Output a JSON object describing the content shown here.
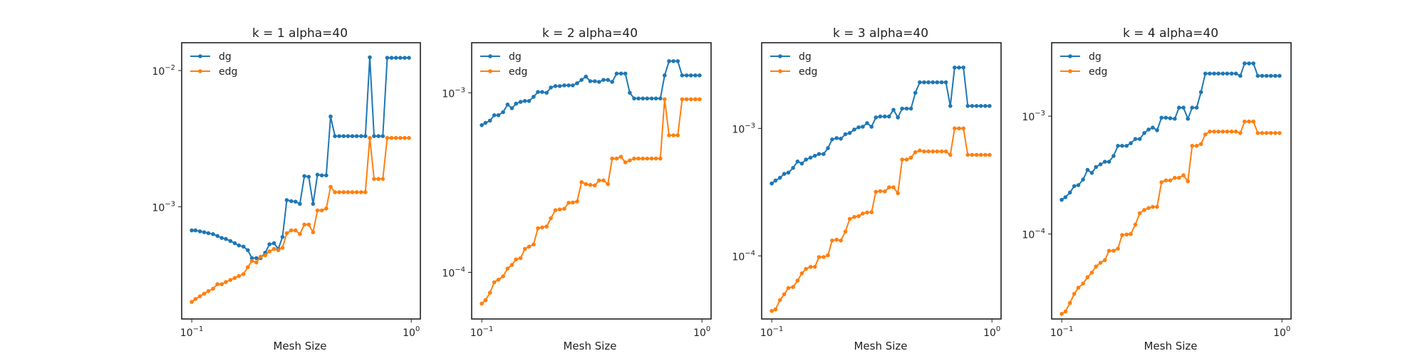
{
  "figure": {
    "panels": [
      {
        "title": "k = 1 alpha=40",
        "xlabel": "Mesh Size"
      },
      {
        "title": "k = 2 alpha=40",
        "xlabel": "Mesh Size"
      },
      {
        "title": "k = 3 alpha=40",
        "xlabel": "Mesh Size"
      },
      {
        "title": "k = 4 alpha=40",
        "xlabel": "Mesh Size"
      }
    ],
    "colors": {
      "dg": "#1f77b4",
      "edg": "#ff7f0e"
    }
  },
  "chart_data": [
    {
      "type": "line",
      "title": "k = 1 alpha=40",
      "xlabel": "Mesh Size",
      "ylabel": "",
      "xscale": "log",
      "yscale": "log",
      "xlim": [
        0.09,
        1.1
      ],
      "ylim": [
        0.00015,
        0.016
      ],
      "legend": "top-left",
      "grid": false,
      "xticks": [
        {
          "value": 0.1,
          "label": "10^-1"
        },
        {
          "value": 1,
          "label": "10^0"
        }
      ],
      "yticks": [
        {
          "value": 0.001,
          "label": "10^-3"
        },
        {
          "value": 0.01,
          "label": "10^-2"
        }
      ],
      "x": [
        0.1,
        0.104,
        0.109,
        0.114,
        0.119,
        0.125,
        0.131,
        0.137,
        0.143,
        0.15,
        0.157,
        0.164,
        0.172,
        0.18,
        0.188,
        0.197,
        0.206,
        0.216,
        0.226,
        0.237,
        0.248,
        0.259,
        0.271,
        0.284,
        0.297,
        0.311,
        0.326,
        0.341,
        0.357,
        0.374,
        0.391,
        0.41,
        0.429,
        0.449,
        0.47,
        0.492,
        0.515,
        0.539,
        0.564,
        0.591,
        0.618,
        0.647,
        0.677,
        0.709,
        0.742,
        0.777,
        0.813,
        0.851,
        0.891,
        0.933,
        0.976
      ],
      "series": [
        {
          "name": "dg",
          "values": [
            0.00067,
            0.00067,
            0.00066,
            0.00065,
            0.00064,
            0.00063,
            0.00061,
            0.00059,
            0.00058,
            0.00056,
            0.00054,
            0.00052,
            0.00051,
            0.00048,
            0.00042,
            0.00042,
            0.00042,
            0.00046,
            0.00053,
            0.00054,
            0.00049,
            0.0006,
            0.00112,
            0.0011,
            0.00109,
            0.00105,
            0.00168,
            0.00166,
            0.00105,
            0.00172,
            0.0017,
            0.0017,
            0.0046,
            0.0033,
            0.0033,
            0.0033,
            0.0033,
            0.0033,
            0.0033,
            0.0033,
            0.0033,
            0.0125,
            0.0033,
            0.0033,
            0.0033,
            0.0124,
            0.0124,
            0.0124,
            0.0124,
            0.0124,
            0.0124
          ]
        },
        {
          "name": "edg",
          "values": [
            0.0002,
            0.00021,
            0.00022,
            0.00023,
            0.00024,
            0.00025,
            0.00027,
            0.00027,
            0.00028,
            0.00029,
            0.0003,
            0.00031,
            0.00032,
            0.00036,
            0.0004,
            0.00039,
            0.00043,
            0.00044,
            0.00047,
            0.00049,
            0.00048,
            0.0005,
            0.00064,
            0.00067,
            0.00067,
            0.00063,
            0.00074,
            0.00074,
            0.00065,
            0.00094,
            0.00094,
            0.00097,
            0.0014,
            0.00128,
            0.00128,
            0.00128,
            0.00128,
            0.00128,
            0.00128,
            0.00128,
            0.00128,
            0.0032,
            0.0016,
            0.0016,
            0.0016,
            0.0032,
            0.0032,
            0.0032,
            0.0032,
            0.0032,
            0.0032
          ]
        }
      ]
    },
    {
      "type": "line",
      "title": "k = 2 alpha=40",
      "xlabel": "Mesh Size",
      "ylabel": "",
      "xscale": "log",
      "yscale": "log",
      "xlim": [
        0.09,
        1.1
      ],
      "ylim": [
        5.5e-05,
        0.0019
      ],
      "legend": "top-left",
      "grid": false,
      "xticks": [
        {
          "value": 0.1,
          "label": "10^-1"
        },
        {
          "value": 1,
          "label": "10^0"
        }
      ],
      "yticks": [
        {
          "value": 0.0001,
          "label": "10^-4"
        },
        {
          "value": 0.001,
          "label": "10^-3"
        }
      ],
      "x": [
        0.1,
        0.104,
        0.109,
        0.114,
        0.119,
        0.125,
        0.131,
        0.137,
        0.143,
        0.15,
        0.157,
        0.164,
        0.172,
        0.18,
        0.188,
        0.197,
        0.206,
        0.216,
        0.226,
        0.237,
        0.248,
        0.259,
        0.271,
        0.284,
        0.297,
        0.311,
        0.326,
        0.341,
        0.357,
        0.374,
        0.391,
        0.41,
        0.429,
        0.449,
        0.47,
        0.492,
        0.515,
        0.539,
        0.564,
        0.591,
        0.618,
        0.647,
        0.677,
        0.709,
        0.742,
        0.777,
        0.813,
        0.851,
        0.891,
        0.933,
        0.976
      ],
      "series": [
        {
          "name": "dg",
          "values": [
            0.00066,
            0.00068,
            0.0007,
            0.00075,
            0.00075,
            0.00078,
            0.00086,
            0.00082,
            0.00087,
            0.00089,
            0.0009,
            0.0009,
            0.00095,
            0.00101,
            0.00101,
            0.001,
            0.00107,
            0.00109,
            0.00109,
            0.0011,
            0.0011,
            0.0011,
            0.00113,
            0.00118,
            0.00123,
            0.00116,
            0.00116,
            0.00115,
            0.00118,
            0.00118,
            0.00115,
            0.00128,
            0.00128,
            0.00128,
            0.001,
            0.00093,
            0.00093,
            0.00093,
            0.00093,
            0.00093,
            0.00093,
            0.00093,
            0.00125,
            0.0015,
            0.0015,
            0.0015,
            0.00125,
            0.00125,
            0.00125,
            0.00125,
            0.00125
          ]
        },
        {
          "name": "edg",
          "values": [
            6.7e-05,
            7e-05,
            7.7e-05,
            8.8e-05,
            9.1e-05,
            9.5e-05,
            0.000105,
            0.00011,
            0.000118,
            0.00012,
            0.000135,
            0.000139,
            0.000143,
            0.000176,
            0.000178,
            0.00018,
            0.0002,
            0.000222,
            0.000224,
            0.000226,
            0.000244,
            0.000245,
            0.000248,
            0.000318,
            0.00031,
            0.000307,
            0.000305,
            0.000325,
            0.000325,
            0.00031,
            0.00043,
            0.00043,
            0.00044,
            0.00041,
            0.00042,
            0.00043,
            0.00043,
            0.00043,
            0.00043,
            0.00043,
            0.00043,
            0.00043,
            0.00092,
            0.00058,
            0.00058,
            0.00058,
            0.00092,
            0.00092,
            0.00092,
            0.00092,
            0.00092
          ]
        }
      ]
    },
    {
      "type": "line",
      "title": "k = 3 alpha=40",
      "xlabel": "Mesh Size",
      "ylabel": "",
      "xscale": "log",
      "yscale": "log",
      "xlim": [
        0.09,
        1.1
      ],
      "ylim": [
        3.2e-05,
        0.0047
      ],
      "legend": "top-left",
      "grid": false,
      "xticks": [
        {
          "value": 0.1,
          "label": "10^-1"
        },
        {
          "value": 1,
          "label": "10^0"
        }
      ],
      "yticks": [
        {
          "value": 0.0001,
          "label": "10^-4"
        },
        {
          "value": 0.001,
          "label": "10^-3"
        }
      ],
      "x": [
        0.1,
        0.104,
        0.109,
        0.114,
        0.119,
        0.125,
        0.131,
        0.137,
        0.143,
        0.15,
        0.157,
        0.164,
        0.172,
        0.18,
        0.188,
        0.197,
        0.206,
        0.216,
        0.226,
        0.237,
        0.248,
        0.259,
        0.271,
        0.284,
        0.297,
        0.311,
        0.326,
        0.341,
        0.357,
        0.374,
        0.391,
        0.41,
        0.429,
        0.449,
        0.47,
        0.492,
        0.515,
        0.539,
        0.564,
        0.591,
        0.618,
        0.647,
        0.677,
        0.709,
        0.742,
        0.777,
        0.813,
        0.851,
        0.891,
        0.933,
        0.976
      ],
      "series": [
        {
          "name": "dg",
          "values": [
            0.00037,
            0.00039,
            0.00041,
            0.00044,
            0.00045,
            0.00049,
            0.00055,
            0.00053,
            0.00057,
            0.00059,
            0.00061,
            0.00063,
            0.00063,
            0.0007,
            0.00082,
            0.00084,
            0.00083,
            0.0009,
            0.00092,
            0.00098,
            0.00102,
            0.00103,
            0.0011,
            0.00103,
            0.00122,
            0.00124,
            0.00124,
            0.00124,
            0.0014,
            0.00122,
            0.00143,
            0.00143,
            0.00143,
            0.0019,
            0.0023,
            0.0023,
            0.0023,
            0.0023,
            0.0023,
            0.0023,
            0.0023,
            0.0015,
            0.003,
            0.003,
            0.003,
            0.0015,
            0.0015,
            0.0015,
            0.0015,
            0.0015,
            0.0015
          ]
        },
        {
          "name": "edg",
          "values": [
            3.7e-05,
            3.8e-05,
            4.5e-05,
            5e-05,
            5.6e-05,
            5.7e-05,
            6.4e-05,
            7.3e-05,
            7.9e-05,
            8.2e-05,
            8.2e-05,
            9.8e-05,
            9.8e-05,
            0.000101,
            0.000132,
            0.000134,
            0.000132,
            0.000155,
            0.000195,
            0.000202,
            0.000205,
            0.000215,
            0.000219,
            0.00022,
            0.000318,
            0.000322,
            0.00032,
            0.000345,
            0.000345,
            0.00031,
            0.00057,
            0.00057,
            0.00059,
            0.00065,
            0.00067,
            0.00066,
            0.00066,
            0.00066,
            0.00066,
            0.00066,
            0.00066,
            0.00062,
            0.001,
            0.001,
            0.001,
            0.00062,
            0.00062,
            0.00062,
            0.00062,
            0.00062,
            0.00062
          ]
        }
      ]
    },
    {
      "type": "line",
      "title": "k = 4 alpha=40",
      "xlabel": "Mesh Size",
      "ylabel": "",
      "xscale": "log",
      "yscale": "log",
      "xlim": [
        0.09,
        1.1
      ],
      "ylim": [
        1.9e-05,
        0.0042
      ],
      "legend": "top-left",
      "grid": false,
      "xticks": [
        {
          "value": 0.1,
          "label": "10^-1"
        },
        {
          "value": 1,
          "label": "10^0"
        }
      ],
      "yticks": [
        {
          "value": 0.0001,
          "label": "10^-4"
        },
        {
          "value": 0.001,
          "label": "10^-3"
        }
      ],
      "x": [
        0.1,
        0.104,
        0.109,
        0.114,
        0.119,
        0.125,
        0.131,
        0.137,
        0.143,
        0.15,
        0.157,
        0.164,
        0.172,
        0.18,
        0.188,
        0.197,
        0.206,
        0.216,
        0.226,
        0.237,
        0.248,
        0.259,
        0.271,
        0.284,
        0.297,
        0.311,
        0.326,
        0.341,
        0.357,
        0.374,
        0.391,
        0.41,
        0.429,
        0.449,
        0.47,
        0.492,
        0.515,
        0.539,
        0.564,
        0.591,
        0.618,
        0.647,
        0.677,
        0.709,
        0.742,
        0.777,
        0.813,
        0.851,
        0.891,
        0.933,
        0.976
      ],
      "series": [
        {
          "name": "dg",
          "values": [
            0.000195,
            0.000205,
            0.000225,
            0.000255,
            0.00026,
            0.00029,
            0.00035,
            0.00033,
            0.00037,
            0.00039,
            0.00041,
            0.00041,
            0.00046,
            0.00056,
            0.00056,
            0.00056,
            0.00059,
            0.00064,
            0.00064,
            0.00072,
            0.00077,
            0.0008,
            0.00076,
            0.00097,
            0.00097,
            0.00096,
            0.00095,
            0.00118,
            0.00118,
            0.00095,
            0.00118,
            0.00118,
            0.0016,
            0.0023,
            0.0023,
            0.0023,
            0.0023,
            0.0023,
            0.0023,
            0.0023,
            0.0023,
            0.0022,
            0.0028,
            0.0028,
            0.0028,
            0.0022,
            0.0022,
            0.0022,
            0.0022,
            0.0022,
            0.0022
          ]
        },
        {
          "name": "edg",
          "values": [
            2.1e-05,
            2.2e-05,
            2.6e-05,
            3.1e-05,
            3.5e-05,
            3.8e-05,
            4.3e-05,
            4.7e-05,
            5.3e-05,
            5.7e-05,
            6e-05,
            7.2e-05,
            7.2e-05,
            7.5e-05,
            9.8e-05,
            9.9e-05,
            0.0001,
            0.00012,
            0.00015,
            0.00016,
            0.000166,
            0.00017,
            0.00017,
            0.000275,
            0.000285,
            0.000285,
            0.0003,
            0.0003,
            0.000315,
            0.00028,
            0.00056,
            0.00056,
            0.00058,
            0.0007,
            0.00074,
            0.00074,
            0.00074,
            0.00074,
            0.00074,
            0.00074,
            0.00074,
            0.00072,
            0.0009,
            0.0009,
            0.0009,
            0.00072,
            0.00072,
            0.00072,
            0.00072,
            0.00072,
            0.00072
          ]
        }
      ]
    }
  ]
}
